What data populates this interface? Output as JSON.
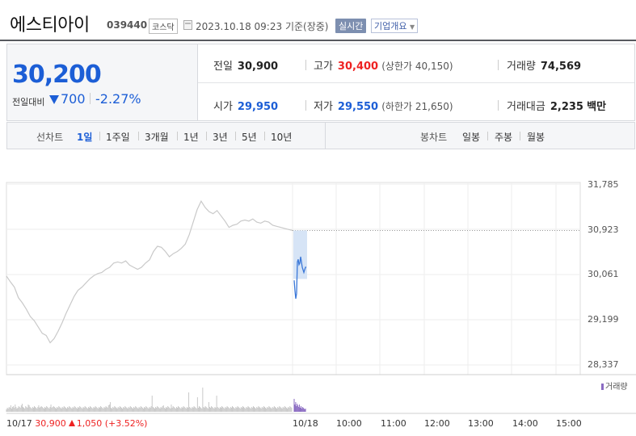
{
  "header": {
    "company_name": "에스티아이",
    "code": "039440",
    "market": "코스닥",
    "datetime": "2023.10.18 09:23",
    "basis_label": "기준(장중)",
    "realtime_label": "실시간",
    "overview_label": "기업개요"
  },
  "summary": {
    "current_price": "30,200",
    "vs_prev_label": "전일대비",
    "change_amount": "700",
    "change_percent": "-2.27%",
    "prev_close_label": "전일",
    "prev_close": "30,900",
    "high_label": "고가",
    "high": "30,400",
    "upper_limit_label": "(상한가",
    "upper_limit": "40,150",
    "upper_limit_close": ")",
    "volume_label": "거래량",
    "volume": "74,569",
    "open_label": "시가",
    "open": "29,950",
    "low_label": "저가",
    "low": "29,550",
    "lower_limit_label": "(하한가",
    "lower_limit": "21,650",
    "lower_limit_close": ")",
    "amount_label": "거래대금",
    "amount": "2,235",
    "amount_unit": "백만"
  },
  "tabs": {
    "line_chart_label": "선차트",
    "periods": [
      "1일",
      "1주일",
      "3개월",
      "1년",
      "3년",
      "5년",
      "10년"
    ],
    "selected_period": "1일",
    "candle_chart_label": "봉차트",
    "candle_periods": [
      "일봉",
      "주봉",
      "월봉"
    ]
  },
  "chart_data": {
    "type": "line",
    "y_ticks": [
      "31,785",
      "30,923",
      "30,061",
      "29,199",
      "28,337"
    ],
    "ylim": [
      28337,
      31785
    ],
    "prev_close": 30900,
    "x_ticks": [
      "10/17",
      "10/18",
      "10:00",
      "11:00",
      "12:00",
      "13:00",
      "14:00",
      "15:00"
    ],
    "volume_legend": "거래량",
    "prev_day_summary": {
      "date": "10/17",
      "close": "30,900",
      "change": "1,050",
      "change_percent": "(+3.52%)"
    },
    "series": [
      {
        "day": "10/17",
        "values": [
          30030,
          29920,
          29820,
          29620,
          29520,
          29400,
          29260,
          29180,
          29060,
          28940,
          28900,
          28760,
          28840,
          28980,
          29140,
          29320,
          29480,
          29640,
          29760,
          29820,
          29900,
          29980,
          30040,
          30080,
          30100,
          30160,
          30200,
          30280,
          30300,
          30280,
          30320,
          30240,
          30200,
          30160,
          30200,
          30280,
          30340,
          30500,
          30600,
          30580,
          30500,
          30400,
          30460,
          30500,
          30560,
          30640,
          30820,
          31060,
          31300,
          31460,
          31340,
          31260,
          31220,
          31280,
          31180,
          31080,
          30960,
          31000,
          31020,
          31080,
          31100,
          31080,
          31120,
          31060,
          31040,
          31080,
          31060,
          31000,
          30980,
          30960,
          30940,
          30920,
          30900
        ]
      },
      {
        "day": "10/18",
        "values": [
          29950,
          29750,
          29600,
          29700,
          30300,
          30350,
          30250,
          30280,
          30400,
          30300,
          30200,
          30150,
          30100,
          30150,
          30200,
          30200
        ]
      }
    ],
    "volume": {
      "prev_day": [
        3,
        5,
        4,
        6,
        5,
        8,
        4,
        6,
        7,
        5,
        9,
        6,
        4,
        5,
        7,
        6,
        5,
        8,
        10,
        6,
        5,
        4,
        7,
        6,
        5,
        9,
        8,
        6,
        5,
        4,
        6,
        5,
        7,
        6,
        5,
        4,
        6,
        8,
        5,
        6,
        7,
        6,
        5,
        4,
        6,
        5,
        7,
        6,
        5,
        4,
        6,
        9,
        5,
        6,
        7,
        6,
        5,
        4,
        6,
        5,
        7,
        6,
        5,
        4,
        6,
        5,
        7,
        6,
        5,
        4,
        6,
        5,
        7,
        6,
        5,
        4,
        6,
        5,
        7,
        6,
        5,
        4,
        6,
        5,
        7,
        6,
        5,
        4,
        6,
        5,
        7,
        6,
        5,
        4,
        6,
        5,
        7,
        6,
        5,
        4,
        6,
        5,
        7,
        6,
        5,
        4,
        6,
        5,
        7,
        6,
        5,
        4,
        6,
        5,
        7,
        6,
        5,
        8,
        9,
        12,
        5,
        4,
        6,
        5,
        7,
        6,
        5,
        4,
        6,
        5,
        7,
        6,
        5,
        4,
        6,
        5,
        7,
        6,
        5,
        4,
        6,
        5,
        7,
        6,
        5,
        4,
        6,
        5,
        7,
        6,
        5,
        4,
        6,
        5,
        7,
        6,
        5,
        4,
        6,
        5,
        7,
        6,
        5,
        4,
        6,
        5,
        7,
        20,
        6,
        5,
        4,
        6,
        5,
        7,
        6,
        5,
        4,
        6,
        5,
        7,
        8,
        5,
        4,
        6,
        5,
        7,
        6,
        5,
        4,
        9,
        5,
        7,
        6,
        5,
        4,
        6,
        5,
        7,
        6,
        5,
        4,
        6,
        5,
        7,
        6,
        5,
        4,
        6,
        5,
        24,
        6,
        5,
        4,
        6,
        5,
        7,
        6,
        5,
        4,
        18,
        5,
        7,
        6,
        5,
        4,
        30,
        6,
        5,
        7,
        6,
        5,
        4,
        12,
        6,
        5,
        7,
        6,
        5,
        4,
        6,
        5,
        20,
        6,
        5,
        4,
        6,
        5,
        7,
        6,
        5,
        4,
        6,
        5,
        7,
        6,
        5,
        4,
        6,
        5,
        7,
        6,
        5,
        4,
        6,
        5,
        7,
        6,
        5,
        4,
        6,
        5,
        7,
        6,
        5,
        4,
        6,
        5,
        7,
        6,
        5,
        4,
        6,
        5,
        7,
        6,
        5,
        4,
        6,
        5,
        7,
        6,
        5,
        4,
        6,
        5,
        7,
        6,
        5,
        4,
        6,
        5,
        7,
        6,
        5,
        4,
        6,
        5,
        7,
        6,
        5,
        4,
        6,
        5,
        7,
        6,
        5,
        4,
        6,
        5,
        7,
        6,
        5,
        4,
        6,
        5,
        7,
        6,
        5
      ],
      "today": [
        16,
        9,
        12,
        7,
        10,
        8,
        6,
        9,
        5,
        7,
        4,
        6,
        5,
        4,
        3,
        4
      ]
    }
  },
  "colors": {
    "accent_blue": "#1c5ed6",
    "up_red": "#e22",
    "prev_line": "#c9c9c9",
    "today_line": "#3b78d8",
    "today_fill": "#d6e4f6",
    "today_volume": "#8a6bc2",
    "prev_volume": "#c9c9c9"
  }
}
